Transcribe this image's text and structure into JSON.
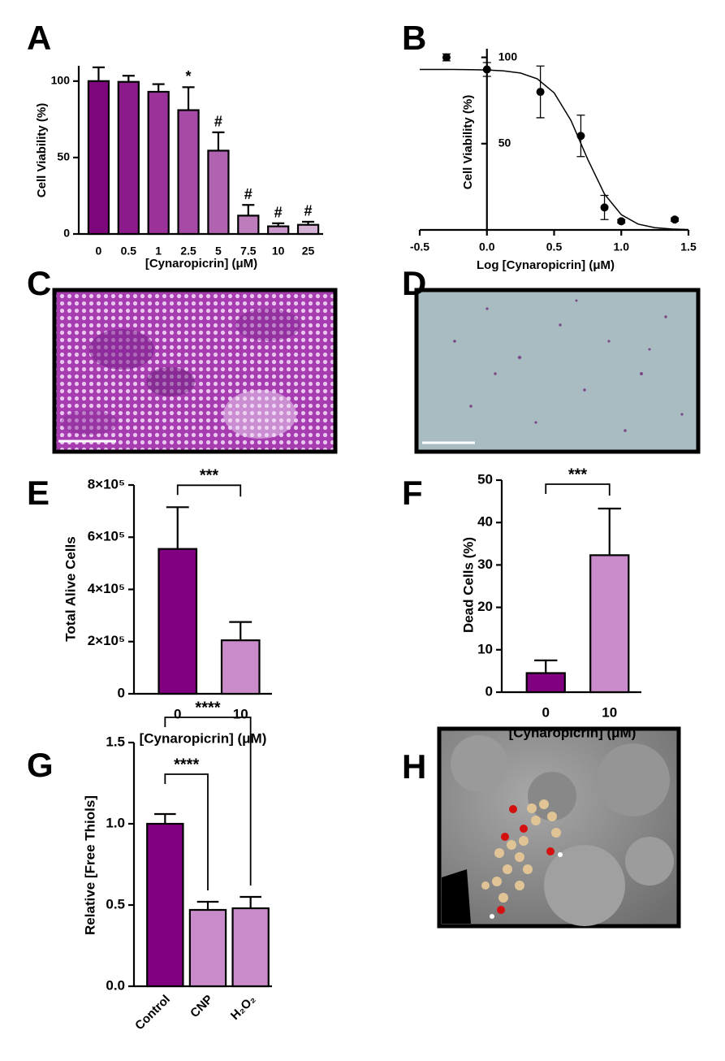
{
  "chart_data": [
    {
      "panel": "A",
      "type": "bar",
      "categories": [
        "0",
        "0.5",
        "1",
        "2.5",
        "5",
        "7.5",
        "10",
        "25"
      ],
      "values": [
        100,
        99.5,
        93,
        81,
        54.5,
        12,
        5,
        6
      ],
      "errors": [
        9,
        4,
        5,
        15,
        12,
        7,
        2,
        2
      ],
      "annotations": [
        null,
        null,
        null,
        "*",
        "#",
        "#",
        "#",
        "#"
      ],
      "colors": [
        "#7d067d",
        "#8b1a8b",
        "#9a329a",
        "#a64aa6",
        "#b163b1",
        "#bd7dbd",
        "#c896c8",
        "#d4b0d4"
      ],
      "ylabel": "Cell Viability (%)",
      "xlabel": "[Cynaropicrin] (μM)",
      "ylim": [
        0,
        110
      ],
      "yticks": [
        0,
        50,
        100
      ]
    },
    {
      "panel": "B",
      "type": "dose-response",
      "x": [
        -0.301,
        0,
        0.398,
        0.699,
        0.875,
        1,
        1.398
      ],
      "values": [
        100,
        93,
        80,
        54.5,
        13,
        5,
        6
      ],
      "errors": [
        2,
        4,
        15,
        12,
        7,
        1,
        1
      ],
      "fit": {
        "x": [
          -0.5,
          -0.375,
          -0.25,
          -0.125,
          0,
          0.125,
          0.25,
          0.375,
          0.5,
          0.625,
          0.75,
          0.875,
          1,
          1.125,
          1.25,
          1.375,
          1.5
        ],
        "values": [
          93,
          93,
          93,
          92.9,
          92.7,
          92.2,
          90.9,
          87.6,
          79.5,
          63.5,
          40.9,
          20.7,
          8.8,
          3.4,
          1.3,
          0.5,
          0.2
        ]
      },
      "color": "#000000",
      "ylabel": "Cell Viability (%)",
      "xlabel": "Log [Cynaropicrin] (μM)",
      "xlim": [
        -0.5,
        1.5
      ],
      "xticks": [
        -0.5,
        {
          "value": 0,
          "label": "0.0"
        },
        0.5,
        {
          "value": 1,
          "label": "1.0"
        },
        1.5
      ],
      "ylim": [
        0,
        105
      ],
      "yticks": [
        50,
        100
      ]
    },
    {
      "panel": "E",
      "type": "bar",
      "categories": [
        "0",
        "10"
      ],
      "values": [
        555000,
        205000
      ],
      "errors": [
        160000,
        70000
      ],
      "colors": [
        "#800080",
        "#c98bc9"
      ],
      "brackets": [
        {
          "pair": [
            0,
            1
          ],
          "label": "***"
        }
      ],
      "ylabel": "Total Alive Cells",
      "xlabel": "[Cynaropicrin] (μM)",
      "ylim": [
        0,
        800000
      ],
      "yticks": [
        0,
        {
          "value": 200000,
          "label": "2×10⁵"
        },
        {
          "value": 400000,
          "label": "4×10⁵"
        },
        {
          "value": 600000,
          "label": "6×10⁵"
        },
        {
          "value": 800000,
          "label": "8×10⁵"
        }
      ]
    },
    {
      "panel": "F",
      "type": "bar",
      "categories": [
        "0",
        "10"
      ],
      "values": [
        4.5,
        32.3
      ],
      "errors": [
        3,
        11
      ],
      "colors": [
        "#800080",
        "#c98bc9"
      ],
      "brackets": [
        {
          "pair": [
            0,
            1
          ],
          "label": "***"
        }
      ],
      "ylabel": "Dead Cells (%)",
      "xlabel": "[Cynaropicrin] (μM)",
      "ylim": [
        0,
        50
      ],
      "yticks": [
        0,
        10,
        20,
        30,
        40,
        50
      ]
    },
    {
      "panel": "G",
      "type": "bar",
      "categories": [
        "Control",
        "CNP",
        "H₂O₂"
      ],
      "values": [
        1.0,
        0.47,
        0.48
      ],
      "errors": [
        0.06,
        0.05,
        0.07
      ],
      "colors": [
        "#800080",
        "#c98bc9",
        "#c98bc9"
      ],
      "brackets": [
        {
          "pair": [
            0,
            1
          ],
          "label": "****"
        },
        {
          "pair": [
            0,
            2
          ],
          "label": "****"
        }
      ],
      "ylabel": "Relative [Free Thiols]",
      "ylim": [
        0,
        1.5
      ],
      "yticks": [
        {
          "value": 0,
          "label": "0.0"
        },
        0.5,
        {
          "value": 1,
          "label": "1.0"
        },
        1.5
      ]
    }
  ],
  "images": [
    {
      "panel": "C"
    },
    {
      "panel": "D"
    },
    {
      "panel": "H"
    }
  ]
}
